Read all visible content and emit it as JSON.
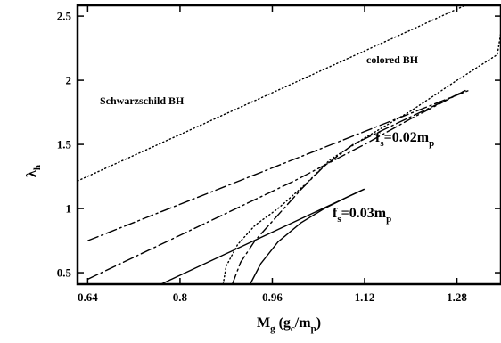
{
  "chart_data": {
    "type": "line",
    "title": "",
    "xlabel": {
      "main": "M",
      "sub1": "g",
      "mid": " (g",
      "sub2": "c",
      "mid2": "/m",
      "sub3": "p",
      "end": ")"
    },
    "ylabel": {
      "main": "λ",
      "sub": "h"
    },
    "xlim": [
      0.6224,
      1.3564
    ],
    "ylim": [
      0.41,
      2.584
    ],
    "x_ticks": [
      0.64,
      0.8,
      0.96,
      1.12,
      1.28
    ],
    "x_tick_labels": [
      "0.64",
      "0.8",
      "0.96",
      "1.12",
      "1.28"
    ],
    "y_ticks": [
      0.5,
      1.0,
      1.5,
      2.0,
      2.5
    ],
    "y_tick_labels": [
      "0.5",
      "1",
      "1.5",
      "2",
      "2.5"
    ],
    "grid": false,
    "legend": "none",
    "annotations": [
      {
        "id": "schwarzschild",
        "text": "Schwarzschild BH"
      },
      {
        "id": "colored",
        "text": "colored BH"
      },
      {
        "id": "fs002",
        "main": "f",
        "sub": "s",
        "value": "=0.02m",
        "sub2": "p"
      },
      {
        "id": "fs003",
        "main": "f",
        "sub": "s",
        "value": "=0.03m",
        "sub2": "p"
      }
    ],
    "series": [
      {
        "id": "schwarzschild",
        "style": "dotted",
        "points": [
          [
            0.6224,
            1.215
          ],
          [
            1.2944,
            2.584
          ]
        ]
      },
      {
        "id": "colored",
        "style": "dotted",
        "points": [
          [
            0.8747,
            0.41
          ],
          [
            0.88,
            0.55
          ],
          [
            0.9,
            0.72
          ],
          [
            0.93,
            0.87
          ],
          [
            0.97,
            1.0
          ],
          [
            1.02,
            1.2
          ],
          [
            1.06,
            1.38
          ],
          [
            1.12,
            1.55
          ],
          [
            1.2,
            1.76
          ],
          [
            1.28,
            2.0
          ],
          [
            1.35,
            2.2
          ],
          [
            1.3564,
            2.38
          ]
        ]
      },
      {
        "id": "fs002-lower",
        "style": "dashdot",
        "points": [
          [
            0.6406,
            0.45
          ],
          [
            1.0,
            1.22
          ],
          [
            1.12,
            1.5
          ],
          [
            1.2,
            1.7
          ],
          [
            1.2944,
            1.92
          ]
        ]
      },
      {
        "id": "fs002-upper",
        "style": "dashdot",
        "points": [
          [
            0.6406,
            0.75
          ],
          [
            1.3,
            1.92
          ]
        ]
      },
      {
        "id": "fs002-lower-branch",
        "style": "dashdot",
        "points": [
          [
            0.8906,
            0.41
          ],
          [
            0.905,
            0.58
          ],
          [
            0.93,
            0.75
          ],
          [
            0.97,
            0.95
          ],
          [
            1.01,
            1.15
          ],
          [
            1.05,
            1.33
          ],
          [
            1.1,
            1.5
          ],
          [
            1.16,
            1.63
          ],
          [
            1.24,
            1.8
          ],
          [
            1.2944,
            1.92
          ]
        ]
      },
      {
        "id": "fs003",
        "style": "solid",
        "points": [
          [
            0.7669,
            0.41
          ],
          [
            1.1188,
            1.15
          ]
        ]
      },
      {
        "id": "fs003-lower-branch",
        "style": "solid",
        "points": [
          [
            0.9215,
            0.41
          ],
          [
            0.94,
            0.57
          ],
          [
            0.97,
            0.74
          ],
          [
            1.01,
            0.89
          ],
          [
            1.05,
            1.0
          ],
          [
            1.09,
            1.09
          ],
          [
            1.1188,
            1.15
          ]
        ]
      }
    ]
  }
}
